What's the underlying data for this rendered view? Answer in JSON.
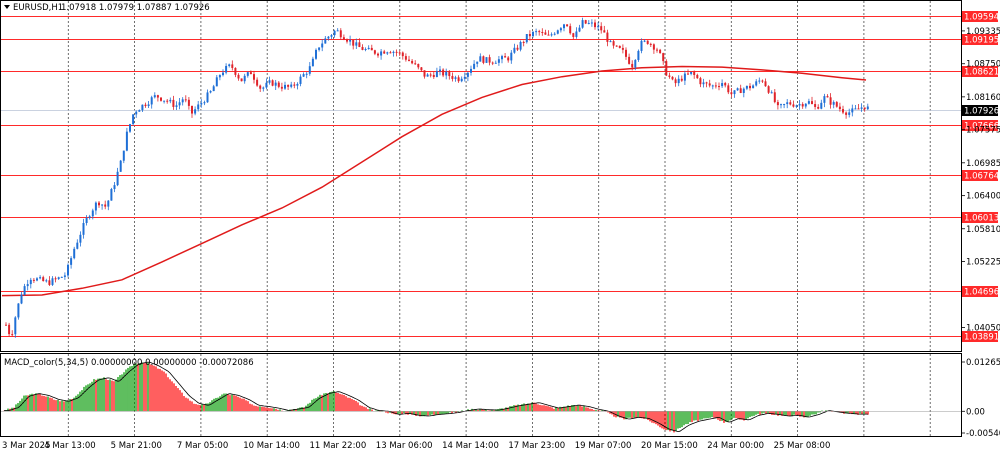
{
  "header": {
    "symbol": "EURUSD,H1",
    "ohlc": "1.07918 1.07979 1.07887 1.07926"
  },
  "macd_header": "MACD_color(5,34,5) 0.00000000 0.00000000 -0.00072086",
  "colors": {
    "bull": "#1f6fd6",
    "bear": "#e0232a",
    "level": "#ff2a2a",
    "ma": "#e01b1b",
    "grid": "#4a4a4a",
    "hist_up": "#1aa11a",
    "hist_down": "#ff1a1a",
    "signal": "#000000",
    "current_bg": "#000000"
  },
  "chart_data": [
    {
      "type": "candlestick",
      "title": "EURUSD,H1",
      "ylim": [
        1.0365,
        1.0985
      ],
      "price_ticks": [
        "1.09335",
        "1.08750",
        "1.08160",
        "1.07575",
        "1.06985",
        "1.06400",
        "1.05810",
        "1.05225",
        "1.04050"
      ],
      "levels": [
        "1.09594",
        "1.09195",
        "1.08621",
        "1.07666",
        "1.06764",
        "1.06013",
        "1.04696",
        "1.03891"
      ],
      "current_price": "1.07926",
      "time_labels": [
        "3 Mar 2025",
        "4 Mar 13:00",
        "5 Mar 21:00",
        "7 Mar 05:00",
        "10 Mar 14:00",
        "11 Mar 22:00",
        "13 Mar 06:00",
        "14 Mar 14:00",
        "17 Mar 23:00",
        "19 Mar 07:00",
        "20 Mar 15:00",
        "24 Mar 00:00",
        "25 Mar 08:00"
      ],
      "close_path": [
        [
          0,
          1.041
        ],
        [
          5,
          1.0388
        ],
        [
          10,
          1.043
        ],
        [
          16,
          1.047
        ],
        [
          24,
          1.0495
        ],
        [
          32,
          1.049
        ],
        [
          42,
          1.0485
        ],
        [
          52,
          1.0492
        ],
        [
          60,
          1.05
        ],
        [
          68,
          1.0545
        ],
        [
          76,
          1.058
        ],
        [
          84,
          1.061
        ],
        [
          92,
          1.063
        ],
        [
          100,
          1.062
        ],
        [
          108,
          1.066
        ],
        [
          115,
          1.07
        ],
        [
          120,
          1.0745
        ],
        [
          128,
          1.079
        ],
        [
          140,
          1.0805
        ],
        [
          150,
          1.0818
        ],
        [
          160,
          1.081
        ],
        [
          170,
          1.08
        ],
        [
          178,
          1.0815
        ],
        [
          185,
          1.0785
        ],
        [
          195,
          1.0805
        ],
        [
          205,
          1.0825
        ],
        [
          215,
          1.086
        ],
        [
          225,
          1.0872
        ],
        [
          235,
          1.0845
        ],
        [
          245,
          1.086
        ],
        [
          255,
          1.083
        ],
        [
          265,
          1.0842
        ],
        [
          275,
          1.0835
        ],
        [
          285,
          1.0832
        ],
        [
          295,
          1.085
        ],
        [
          305,
          1.087
        ],
        [
          312,
          1.0905
        ],
        [
          320,
          1.092
        ],
        [
          330,
          1.0935
        ],
        [
          342,
          1.0918
        ],
        [
          352,
          1.0905
        ],
        [
          362,
          1.0898
        ],
        [
          372,
          1.0895
        ],
        [
          382,
          1.09
        ],
        [
          392,
          1.0895
        ],
        [
          400,
          1.0885
        ],
        [
          410,
          1.087
        ],
        [
          420,
          1.0852
        ],
        [
          432,
          1.086
        ],
        [
          442,
          1.0855
        ],
        [
          452,
          1.0848
        ],
        [
          462,
          1.0862
        ],
        [
          472,
          1.0885
        ],
        [
          482,
          1.088
        ],
        [
          492,
          1.0882
        ],
        [
          502,
          1.0885
        ],
        [
          512,
          1.0905
        ],
        [
          522,
          1.0925
        ],
        [
          532,
          1.0932
        ],
        [
          542,
          1.0922
        ],
        [
          552,
          1.0938
        ],
        [
          560,
          1.095
        ],
        [
          568,
          1.092
        ],
        [
          576,
          1.0948
        ],
        [
          586,
          1.0945
        ],
        [
          596,
          1.0935
        ],
        [
          606,
          1.0905
        ],
        [
          616,
          1.0898
        ],
        [
          626,
          1.0872
        ],
        [
          634,
          1.091
        ],
        [
          642,
          1.0915
        ],
        [
          652,
          1.09
        ],
        [
          660,
          1.086
        ],
        [
          668,
          1.0838
        ],
        [
          676,
          1.085
        ],
        [
          686,
          1.0858
        ],
        [
          696,
          1.084
        ],
        [
          706,
          1.0835
        ],
        [
          716,
          1.0842
        ],
        [
          726,
          1.082
        ],
        [
          736,
          1.083
        ],
        [
          746,
          1.0835
        ],
        [
          756,
          1.0848
        ],
        [
          764,
          1.0825
        ],
        [
          772,
          1.0795
        ],
        [
          782,
          1.0805
        ],
        [
          792,
          1.0802
        ],
        [
          802,
          1.0808
        ],
        [
          810,
          1.0795
        ],
        [
          818,
          1.0815
        ],
        [
          826,
          1.0805
        ],
        [
          834,
          1.0795
        ],
        [
          842,
          1.0788
        ],
        [
          850,
          1.0792
        ],
        [
          858,
          1.08
        ],
        [
          864,
          1.0793
        ]
      ],
      "moving_average": [
        [
          0,
          1.0462
        ],
        [
          40,
          1.0463
        ],
        [
          80,
          1.0475
        ],
        [
          120,
          1.049
        ],
        [
          160,
          1.0522
        ],
        [
          200,
          1.0555
        ],
        [
          240,
          1.0588
        ],
        [
          280,
          1.0618
        ],
        [
          320,
          1.0655
        ],
        [
          360,
          1.07
        ],
        [
          400,
          1.0745
        ],
        [
          440,
          1.0785
        ],
        [
          480,
          1.0815
        ],
        [
          520,
          1.0838
        ],
        [
          560,
          1.0852
        ],
        [
          600,
          1.0862
        ],
        [
          640,
          1.0868
        ],
        [
          680,
          1.087
        ],
        [
          720,
          1.0869
        ],
        [
          760,
          1.0864
        ],
        [
          800,
          1.0858
        ],
        [
          840,
          1.085
        ],
        [
          864,
          1.0846
        ]
      ]
    },
    {
      "type": "histogram",
      "title": "MACD_color(5,34,5)",
      "ylim": [
        -0.006,
        0.014
      ],
      "value_ticks": [
        "0.0126568",
        "0.00",
        "-0.005401"
      ],
      "histogram_path": [
        [
          0,
          0.0002
        ],
        [
          10,
          0.001
        ],
        [
          20,
          0.0038
        ],
        [
          30,
          0.0045
        ],
        [
          40,
          0.004
        ],
        [
          50,
          0.003
        ],
        [
          60,
          0.0025
        ],
        [
          70,
          0.0035
        ],
        [
          80,
          0.006
        ],
        [
          90,
          0.008
        ],
        [
          100,
          0.0085
        ],
        [
          110,
          0.0075
        ],
        [
          120,
          0.01
        ],
        [
          130,
          0.012
        ],
        [
          140,
          0.0125
        ],
        [
          150,
          0.0115
        ],
        [
          160,
          0.01
        ],
        [
          170,
          0.007
        ],
        [
          180,
          0.004
        ],
        [
          190,
          0.002
        ],
        [
          200,
          0.0015
        ],
        [
          210,
          0.003
        ],
        [
          220,
          0.0045
        ],
        [
          230,
          0.004
        ],
        [
          240,
          0.003
        ],
        [
          250,
          0.0015
        ],
        [
          260,
          0.0012
        ],
        [
          270,
          0.0008
        ],
        [
          280,
          0.0002
        ],
        [
          290,
          0.0006
        ],
        [
          300,
          0.001
        ],
        [
          310,
          0.0032
        ],
        [
          320,
          0.0045
        ],
        [
          330,
          0.005
        ],
        [
          340,
          0.004
        ],
        [
          350,
          0.0028
        ],
        [
          360,
          0.001
        ],
        [
          370,
          0.0002
        ],
        [
          380,
          0.0
        ],
        [
          390,
          -0.0008
        ],
        [
          400,
          -0.0005
        ],
        [
          410,
          -0.001
        ],
        [
          420,
          -0.0012
        ],
        [
          430,
          -0.0008
        ],
        [
          440,
          -0.0006
        ],
        [
          450,
          -0.0003
        ],
        [
          460,
          0.0002
        ],
        [
          470,
          0.0006
        ],
        [
          480,
          0.0004
        ],
        [
          490,
          0.0003
        ],
        [
          500,
          0.0008
        ],
        [
          510,
          0.0014
        ],
        [
          520,
          0.0018
        ],
        [
          530,
          0.0022
        ],
        [
          540,
          0.0015
        ],
        [
          550,
          0.0008
        ],
        [
          560,
          0.0012
        ],
        [
          570,
          0.0016
        ],
        [
          580,
          0.0012
        ],
        [
          590,
          0.0005
        ],
        [
          600,
          0.0
        ],
        [
          610,
          -0.0012
        ],
        [
          620,
          -0.002
        ],
        [
          630,
          -0.0015
        ],
        [
          640,
          -0.0018
        ],
        [
          650,
          -0.003
        ],
        [
          660,
          -0.0045
        ],
        [
          670,
          -0.0052
        ],
        [
          680,
          -0.0035
        ],
        [
          690,
          -0.0025
        ],
        [
          700,
          -0.002
        ],
        [
          710,
          -0.0015
        ],
        [
          720,
          -0.0028
        ],
        [
          730,
          -0.0018
        ],
        [
          740,
          -0.0022
        ],
        [
          750,
          -0.001
        ],
        [
          760,
          -0.0005
        ],
        [
          770,
          -0.0008
        ],
        [
          780,
          -0.0012
        ],
        [
          790,
          -0.001
        ],
        [
          800,
          -0.0015
        ],
        [
          810,
          -0.0008
        ],
        [
          820,
          0.0002
        ],
        [
          830,
          -0.0002
        ],
        [
          840,
          -0.0005
        ],
        [
          850,
          -0.0007
        ],
        [
          864,
          -0.0007
        ]
      ]
    }
  ]
}
